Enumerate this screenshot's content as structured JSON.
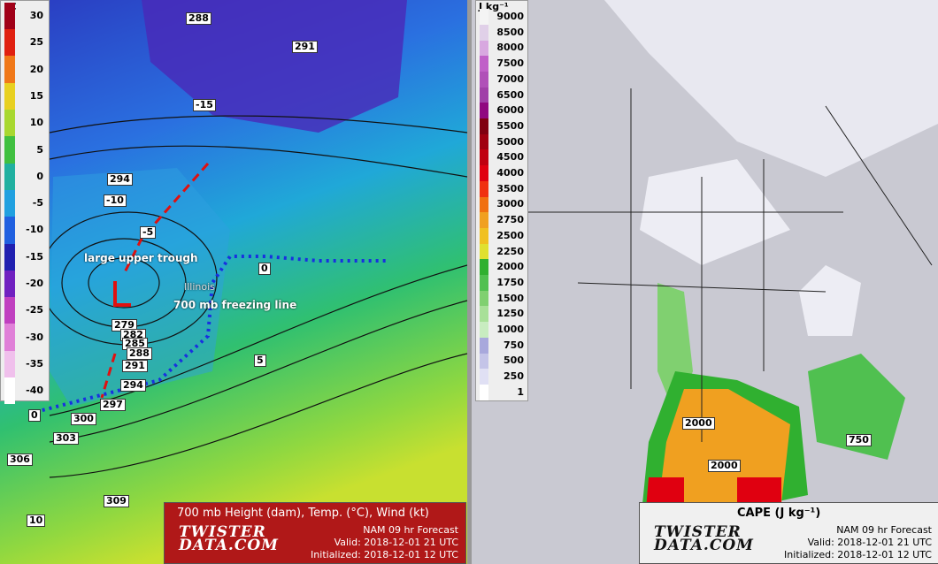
{
  "left_panel": {
    "unit": "°C",
    "colorbar": [
      {
        "label": "30",
        "color": "#a00018"
      },
      {
        "label": "25",
        "color": "#e02010"
      },
      {
        "label": "20",
        "color": "#f07818"
      },
      {
        "label": "15",
        "color": "#e8d020"
      },
      {
        "label": "10",
        "color": "#a8d830"
      },
      {
        "label": "5",
        "color": "#40c040"
      },
      {
        "label": "0",
        "color": "#20b0a0"
      },
      {
        "label": "-5",
        "color": "#20a0e0"
      },
      {
        "label": "-10",
        "color": "#2060e0"
      },
      {
        "label": "-15",
        "color": "#2020b0"
      },
      {
        "label": "-20",
        "color": "#7020c0"
      },
      {
        "label": "-25",
        "color": "#c040c0"
      },
      {
        "label": "-30",
        "color": "#e080d8"
      },
      {
        "label": "-35",
        "color": "#f0c0ec"
      },
      {
        "label": "-40",
        "color": "#ffffff"
      }
    ],
    "contour_labels": [
      "288",
      "291",
      "-15",
      "294",
      "-10",
      "-5",
      "0",
      "279",
      "282",
      "285",
      "288",
      "291",
      "294",
      "297",
      "300",
      "303",
      "306",
      "309",
      "5",
      "0",
      "10"
    ],
    "annotations": [
      "large upper trough",
      "Illinois",
      "700 mb freezing line"
    ],
    "title": "700 mb Height (dam), Temp. (°C), Wind (kt)",
    "logo": [
      "TWISTER",
      "DATA.COM"
    ],
    "model": "NAM 09 hr Forecast",
    "valid": "Valid: 2018-12-01 21 UTC",
    "initialized": "Initialized: 2018-12-01 12 UTC"
  },
  "right_panel": {
    "unit": "J kg⁻¹",
    "colorbar": [
      {
        "label": "9000",
        "color": "#f4f4f4"
      },
      {
        "label": "8500",
        "color": "#e0d0e8"
      },
      {
        "label": "8000",
        "color": "#d8a8e0"
      },
      {
        "label": "7500",
        "color": "#c060c8"
      },
      {
        "label": "7000",
        "color": "#b050b8"
      },
      {
        "label": "6500",
        "color": "#a040a8"
      },
      {
        "label": "6000",
        "color": "#900880"
      },
      {
        "label": "5500",
        "color": "#800010"
      },
      {
        "label": "5000",
        "color": "#a00010"
      },
      {
        "label": "4500",
        "color": "#c00010"
      },
      {
        "label": "4000",
        "color": "#e00010"
      },
      {
        "label": "3500",
        "color": "#f03010"
      },
      {
        "label": "3000",
        "color": "#f07010"
      },
      {
        "label": "2750",
        "color": "#f0a020"
      },
      {
        "label": "2500",
        "color": "#f0c020"
      },
      {
        "label": "2250",
        "color": "#e0e030"
      },
      {
        "label": "2000",
        "color": "#30b030"
      },
      {
        "label": "1750",
        "color": "#50c050"
      },
      {
        "label": "1500",
        "color": "#80d070"
      },
      {
        "label": "1250",
        "color": "#a8e098"
      },
      {
        "label": "1000",
        "color": "#c8ecc0"
      },
      {
        "label": "750",
        "color": "#a8a8dc"
      },
      {
        "label": "500",
        "color": "#c4c4e8"
      },
      {
        "label": "250",
        "color": "#e0e0f4"
      },
      {
        "label": "1",
        "color": "#ffffff"
      }
    ],
    "contour_labels": [
      "2000",
      "2000",
      "750"
    ],
    "title": "CAPE (J kg⁻¹)",
    "logo": [
      "TWISTER",
      "DATA.COM"
    ],
    "model": "NAM 09 hr Forecast",
    "valid": "Valid: 2018-12-01 21 UTC",
    "initialized": "Initialized: 2018-12-01 12 UTC"
  }
}
